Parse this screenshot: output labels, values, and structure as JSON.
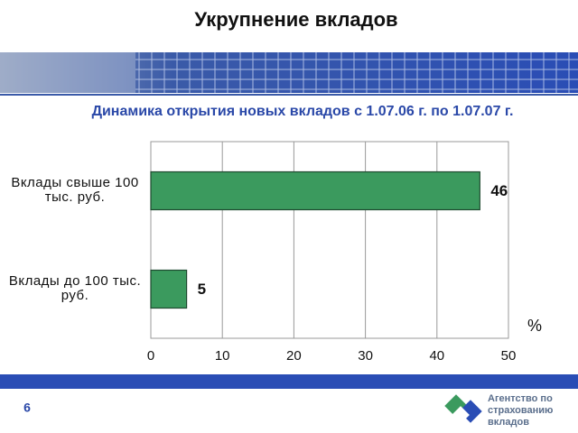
{
  "title": "Укрупнение вкладов",
  "chart_data": {
    "type": "bar",
    "orientation": "horizontal",
    "title": "Динамика открытия новых вкладов с 1.07.06 г. по 1.07.07 г.",
    "categories": [
      "Вклады свыше 100 тыс. руб.",
      "Вклады до 100 тыс. руб."
    ],
    "values": [
      46,
      5
    ],
    "color": "#3b9a5e",
    "xlim": [
      0,
      50
    ],
    "xticks": [
      0,
      10,
      20,
      30,
      40,
      50
    ],
    "x_label": "%",
    "grid": true
  },
  "page_number": "6",
  "logo_text": "Агентство по страхованию вкладов"
}
